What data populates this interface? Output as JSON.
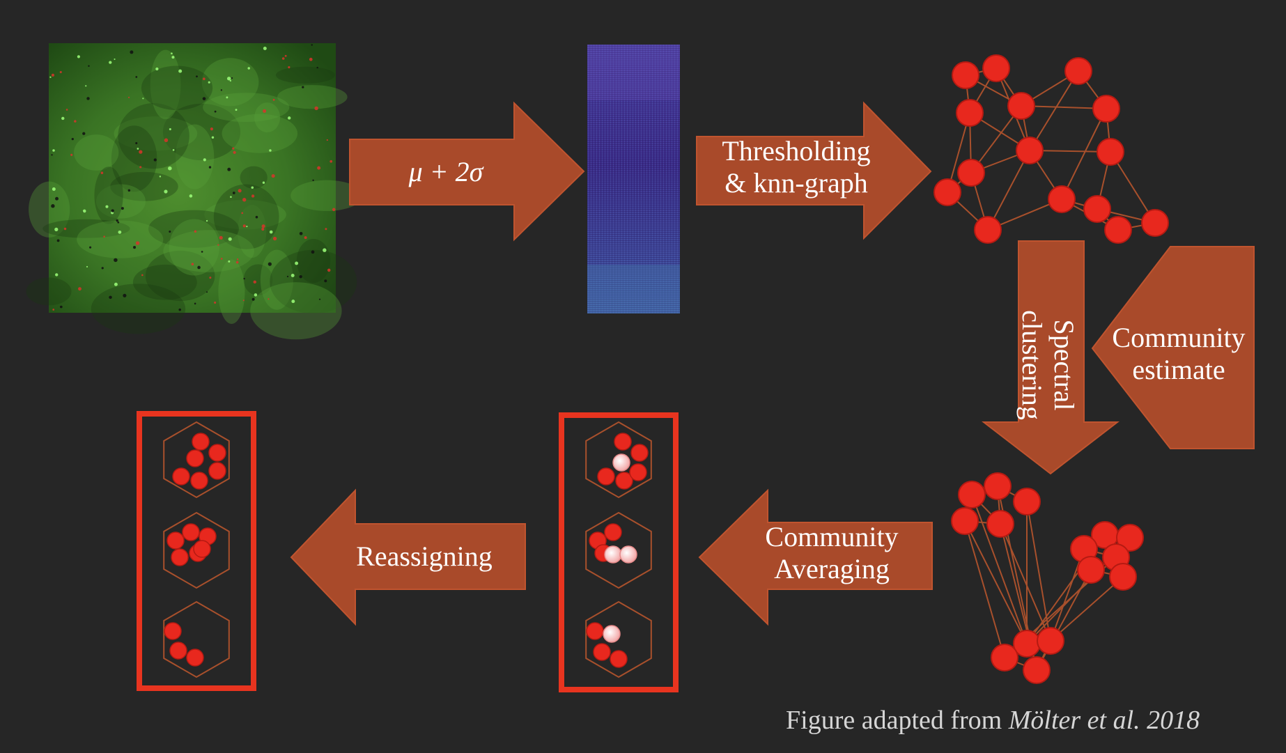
{
  "colors": {
    "background": "#262626",
    "arrow_fill": "#a94a2a",
    "arrow_stroke": "#c0542f",
    "node": "#e8281e",
    "node_stroke": "#b51a12",
    "node_light": "#f6bcbc",
    "edge": "#a8502c",
    "box_border": "#e8341f"
  },
  "labels": {
    "threshold_formula": "μ + 2σ",
    "thresholding_line1": "Thresholding",
    "thresholding_line2": "& knn-graph",
    "spectral_line1": "Spectral",
    "spectral_line2": "clustering",
    "community_estimate_line1": "Community",
    "community_estimate_line2": "estimate",
    "community_averaging_line1": "Community",
    "community_averaging_line2": "Averaging",
    "reassigning": "Reassigning"
  },
  "caption": {
    "prefix": "Figure adapted from ",
    "citation": "Mölter et al. 2018"
  },
  "icons": {
    "microscopy_image": "calcium-imaging-image",
    "matrix_image": "correlation-matrix-image",
    "graph": "knn-graph-icon",
    "clustered_graph": "clustered-graph-icon",
    "averaged_communities": "averaged-communities-icon",
    "reassigned_communities": "reassigned-communities-icon"
  }
}
